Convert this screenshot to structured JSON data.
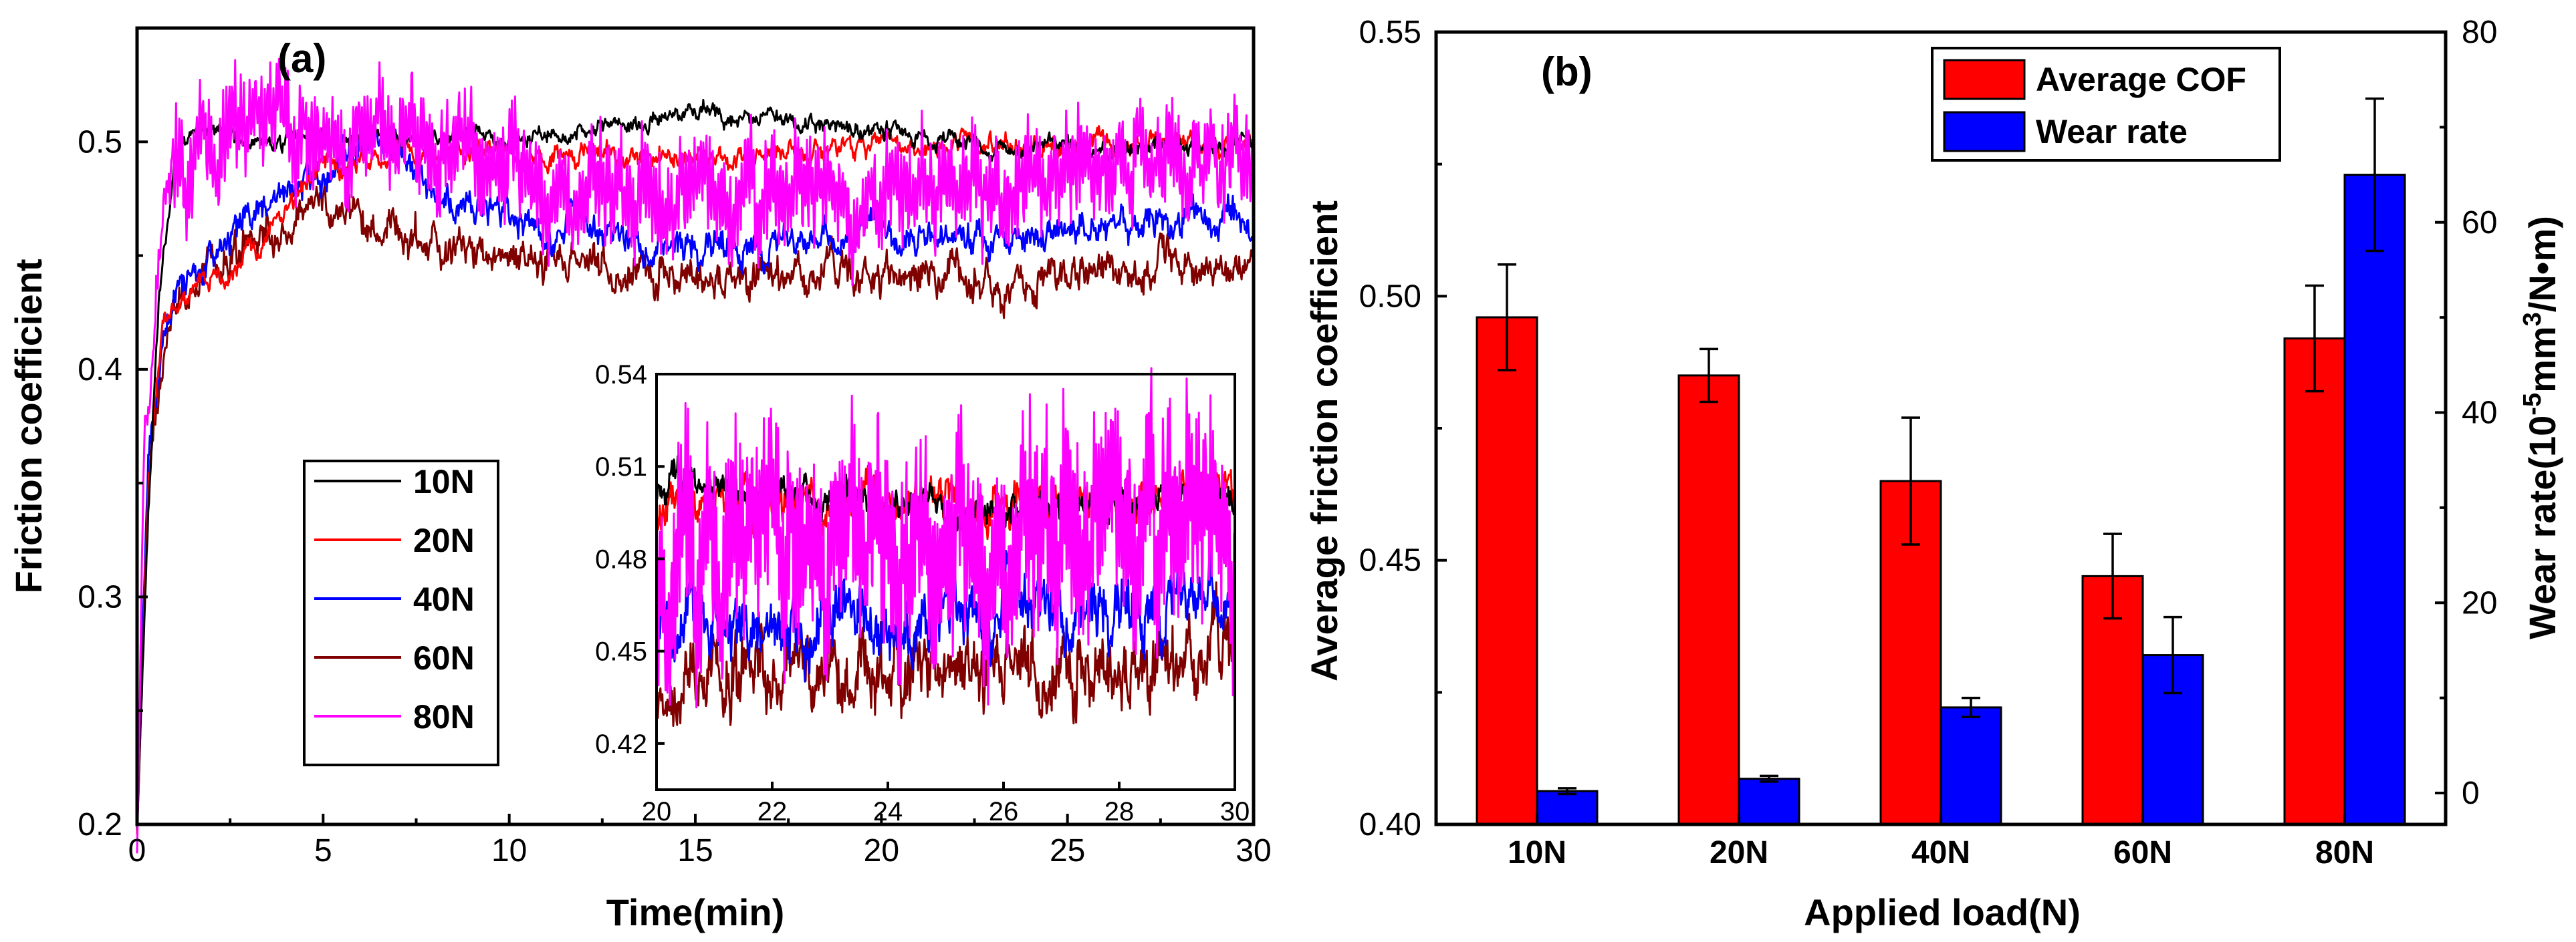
{
  "chart_data": [
    {
      "panel": "(a)",
      "type": "line",
      "xlabel": "Time(min)",
      "ylabel": "Friction coefficient",
      "xlim": [
        0,
        30
      ],
      "ylim": [
        0.2,
        0.55
      ],
      "xticks": [
        0,
        5,
        10,
        15,
        20,
        25,
        30
      ],
      "xtick_labels": [
        "0",
        "5",
        "10",
        "15",
        "20",
        "25",
        "30"
      ],
      "yticks": [
        0.2,
        0.3,
        0.4,
        0.5
      ],
      "ytick_labels": [
        "0.2",
        "0.3",
        "0.4",
        "0.5"
      ],
      "legend_position": "center-left",
      "series": [
        {
          "name": "10N",
          "color": "#000000",
          "points": [
            [
              0,
              0.2
            ],
            [
              0.3,
              0.34
            ],
            [
              0.6,
              0.43
            ],
            [
              1,
              0.49
            ],
            [
              1.5,
              0.505
            ],
            [
              2,
              0.505
            ],
            [
              3,
              0.5
            ],
            [
              5,
              0.5
            ],
            [
              8,
              0.502
            ],
            [
              10,
              0.503
            ],
            [
              12,
              0.505
            ],
            [
              14,
              0.51
            ],
            [
              15,
              0.515
            ],
            [
              16,
              0.51
            ],
            [
              18,
              0.508
            ],
            [
              20,
              0.505
            ],
            [
              22,
              0.5
            ],
            [
              24,
              0.498
            ],
            [
              26,
              0.497
            ],
            [
              28,
              0.498
            ],
            [
              30,
              0.5
            ]
          ]
        },
        {
          "name": "20N",
          "color": "#ff0000",
          "points": [
            [
              0,
              0.2
            ],
            [
              0.3,
              0.35
            ],
            [
              0.7,
              0.42
            ],
            [
              1.5,
              0.435
            ],
            [
              2.5,
              0.44
            ],
            [
              3.5,
              0.46
            ],
            [
              5,
              0.49
            ],
            [
              8,
              0.495
            ],
            [
              10,
              0.495
            ],
            [
              12,
              0.495
            ],
            [
              15,
              0.493
            ],
            [
              18,
              0.495
            ],
            [
              20,
              0.497
            ],
            [
              22,
              0.497
            ],
            [
              24,
              0.498
            ],
            [
              26,
              0.499
            ],
            [
              28,
              0.5
            ],
            [
              30,
              0.5
            ]
          ]
        },
        {
          "name": "40N",
          "color": "#0000ff",
          "points": [
            [
              0,
              0.2
            ],
            [
              0.3,
              0.36
            ],
            [
              0.7,
              0.42
            ],
            [
              1.5,
              0.44
            ],
            [
              3,
              0.47
            ],
            [
              5,
              0.49
            ],
            [
              7,
              0.5
            ],
            [
              8,
              0.48
            ],
            [
              10,
              0.465
            ],
            [
              12,
              0.46
            ],
            [
              14,
              0.455
            ],
            [
              16,
              0.455
            ],
            [
              18,
              0.455
            ],
            [
              20,
              0.46
            ],
            [
              22,
              0.46
            ],
            [
              24,
              0.46
            ],
            [
              26,
              0.463
            ],
            [
              28,
              0.465
            ],
            [
              30,
              0.467
            ]
          ]
        },
        {
          "name": "60N",
          "color": "#800000",
          "points": [
            [
              0,
              0.2
            ],
            [
              0.3,
              0.36
            ],
            [
              0.8,
              0.42
            ],
            [
              2,
              0.445
            ],
            [
              3.5,
              0.455
            ],
            [
              5,
              0.47
            ],
            [
              6,
              0.465
            ],
            [
              7,
              0.458
            ],
            [
              9,
              0.45
            ],
            [
              11,
              0.447
            ],
            [
              13,
              0.445
            ],
            [
              15,
              0.442
            ],
            [
              17,
              0.442
            ],
            [
              19,
              0.44
            ],
            [
              21,
              0.44
            ],
            [
              23,
              0.44
            ],
            [
              25,
              0.443
            ],
            [
              27,
              0.445
            ],
            [
              29,
              0.447
            ],
            [
              30,
              0.447
            ]
          ]
        },
        {
          "name": "80N",
          "color": "#ff00ff",
          "points": [
            [
              0,
              0.2
            ],
            [
              0.2,
              0.38
            ],
            [
              0.6,
              0.46
            ],
            [
              1.2,
              0.49
            ],
            [
              2,
              0.5
            ],
            [
              3,
              0.505
            ],
            [
              5,
              0.5
            ],
            [
              7,
              0.5
            ],
            [
              9,
              0.5
            ],
            [
              10,
              0.49
            ],
            [
              12,
              0.48
            ],
            [
              14,
              0.475
            ],
            [
              16,
              0.475
            ],
            [
              18,
              0.478
            ],
            [
              20,
              0.48
            ],
            [
              22,
              0.482
            ],
            [
              24,
              0.485
            ],
            [
              26,
              0.488
            ],
            [
              28,
              0.49
            ],
            [
              30,
              0.495
            ]
          ]
        }
      ],
      "inset": {
        "xlim": [
          20,
          30
        ],
        "ylim": [
          0.405,
          0.54
        ],
        "xticks": [
          20,
          22,
          24,
          26,
          28,
          30
        ],
        "xtick_labels": [
          "20",
          "22",
          "24",
          "26",
          "28",
          "30"
        ],
        "yticks": [
          0.42,
          0.45,
          0.48,
          0.51,
          0.54
        ],
        "ytick_labels": [
          "0.42",
          "0.45",
          "0.48",
          "0.51",
          "0.54"
        ]
      }
    },
    {
      "panel": "(b)",
      "type": "bar",
      "xlabel": "Applied load(N)",
      "ylabel": "Average friction coefficient",
      "y2label_main": "Wear rate(10",
      "y2label_sup1": "-5",
      "y2label_mid": "mm",
      "y2label_sup2": "3",
      "y2label_end": "/N•m)",
      "categories": [
        "10N",
        "20N",
        "40N",
        "60N",
        "80N"
      ],
      "ylim": [
        0.4,
        0.55
      ],
      "yticks": [
        0.4,
        0.45,
        0.5,
        0.55
      ],
      "ytick_labels": [
        "0.40",
        "0.45",
        "0.50",
        "0.55"
      ],
      "y2lim": [
        -3.3,
        80
      ],
      "y2ticks": [
        0,
        20,
        40,
        60,
        80
      ],
      "y2tick_labels": [
        "0",
        "20",
        "40",
        "60",
        "80"
      ],
      "legend_position": "top-right",
      "series": [
        {
          "name": "Average COF",
          "axis": "left",
          "color": "#ff0000",
          "values": [
            0.496,
            0.485,
            0.465,
            0.447,
            0.492
          ],
          "errors": [
            0.01,
            0.005,
            0.012,
            0.008,
            0.01
          ]
        },
        {
          "name": "Wear rate",
          "axis": "right",
          "color": "#0000ff",
          "values": [
            0.2,
            1.5,
            9,
            14.5,
            65
          ],
          "errors": [
            0.3,
            0.3,
            1,
            4,
            8
          ]
        }
      ]
    }
  ]
}
